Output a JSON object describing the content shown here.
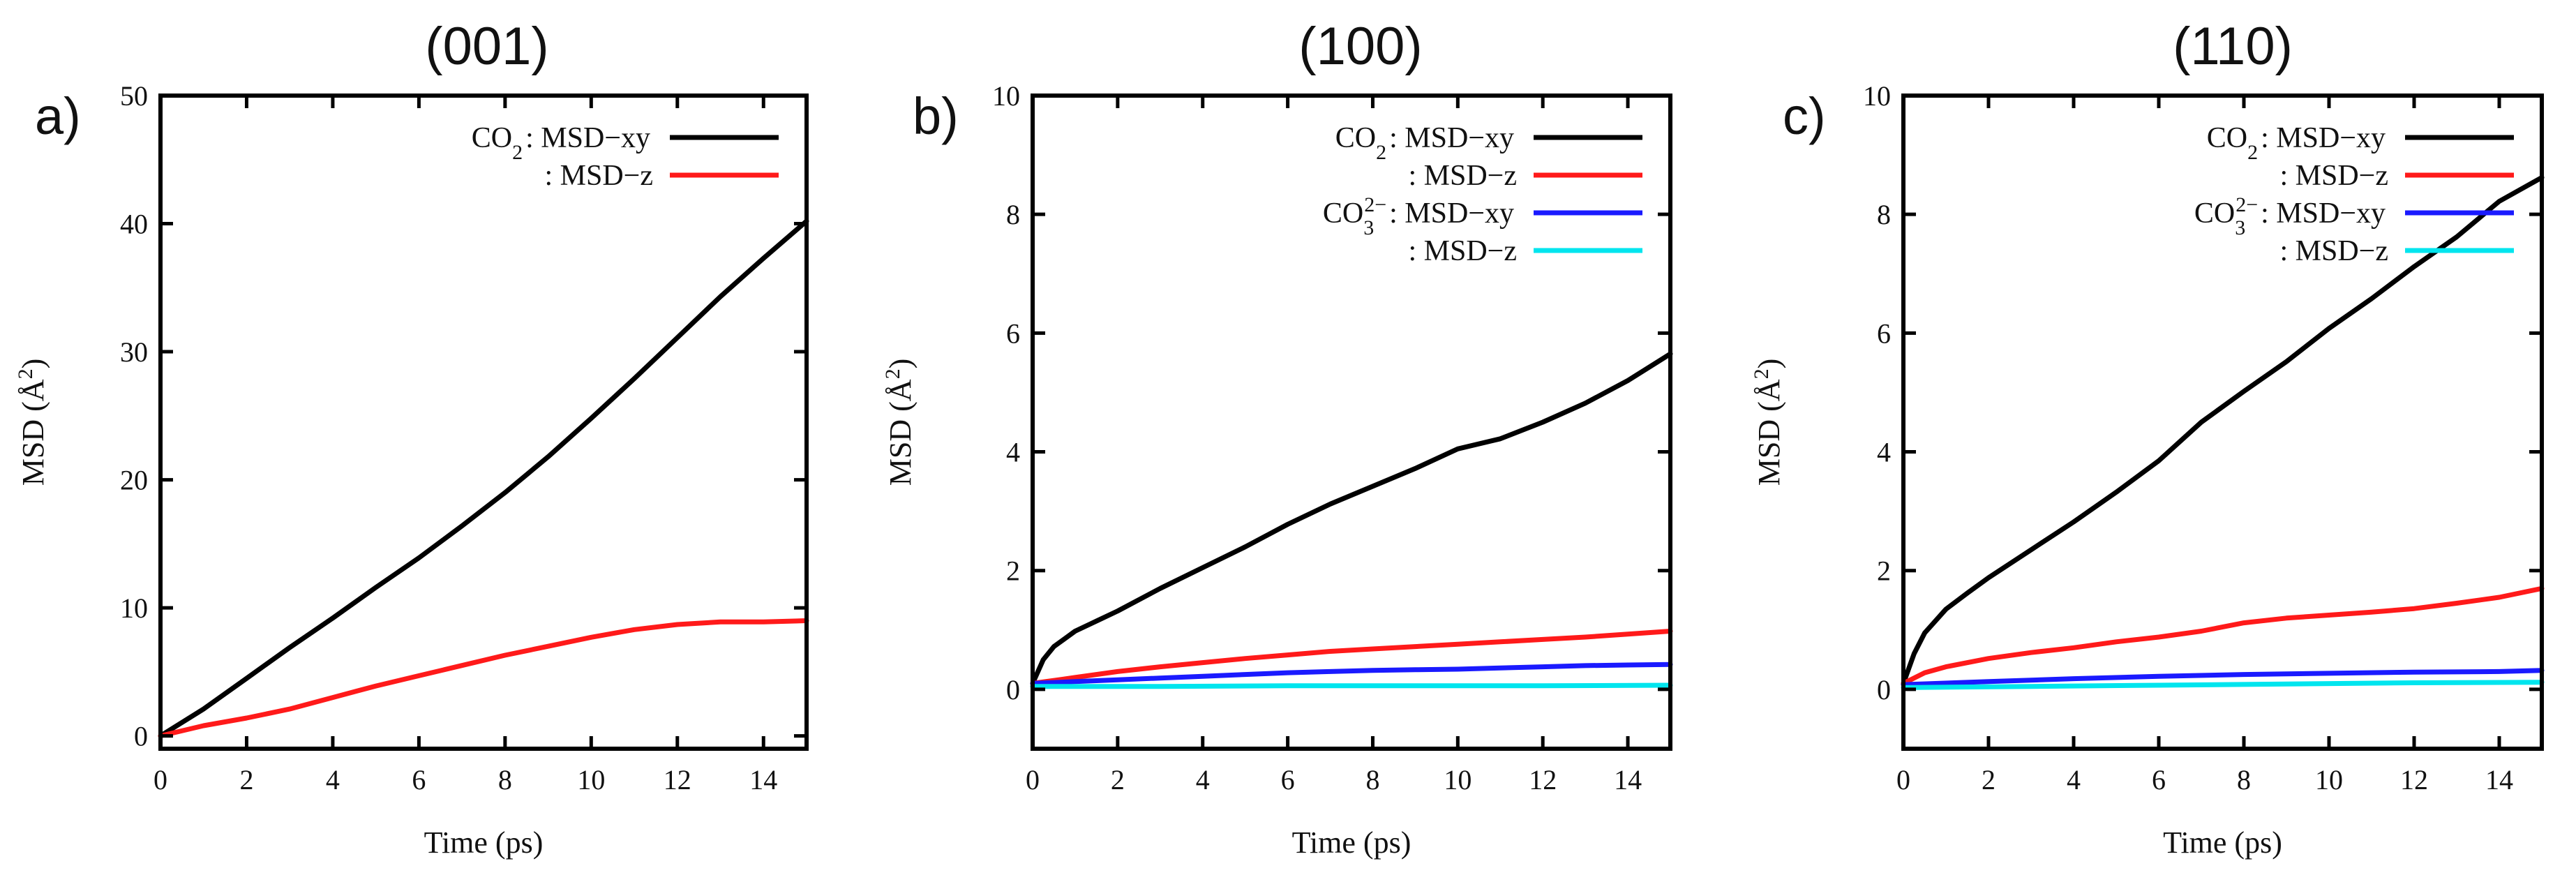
{
  "chart_data": [
    {
      "type": "line",
      "panel_label": "a)",
      "title": "(001)",
      "xlabel": "Time (ps)",
      "ylabel_prefix": "MSD (",
      "ylabel_unit": "Å",
      "ylabel_sup": "2",
      "ylabel_suffix": ")",
      "xlim": [
        0,
        15
      ],
      "ylim": [
        -1,
        50
      ],
      "xticks": [
        0,
        2,
        4,
        6,
        8,
        10,
        12,
        14
      ],
      "yticks": [
        0,
        10,
        20,
        30,
        40,
        50
      ],
      "legend_position": "top-center",
      "series": [
        {
          "name": "CO2 : MSD-xy",
          "species": "CO",
          "species_sub": "2",
          "species_sup": "",
          "label": ": MSD−xy",
          "color": "#000000",
          "x": [
            0,
            1,
            2,
            3,
            4,
            5,
            6,
            7,
            8,
            9,
            10,
            11,
            12,
            13,
            14,
            15
          ],
          "y": [
            0,
            2.1,
            4.5,
            6.9,
            9.2,
            11.6,
            13.9,
            16.4,
            19.0,
            21.8,
            24.8,
            27.9,
            31.1,
            34.3,
            37.3,
            40.2
          ]
        },
        {
          "name": "CO2 : MSD-z",
          "species": "",
          "species_sub": "",
          "species_sup": "",
          "label": ": MSD−z",
          "color": "#ff1a1a",
          "x": [
            0,
            1,
            2,
            3,
            4,
            5,
            6,
            7,
            8,
            9,
            10,
            11,
            12,
            13,
            14,
            15
          ],
          "y": [
            0,
            0.8,
            1.4,
            2.1,
            3.0,
            3.9,
            4.7,
            5.5,
            6.3,
            7.0,
            7.7,
            8.3,
            8.7,
            8.9,
            8.9,
            9.0
          ]
        }
      ]
    },
    {
      "type": "line",
      "panel_label": "b)",
      "title": "(100)",
      "xlabel": "Time (ps)",
      "ylabel_prefix": "MSD (",
      "ylabel_unit": "Å",
      "ylabel_sup": "2",
      "ylabel_suffix": ")",
      "xlim": [
        0,
        15
      ],
      "ylim": [
        -1,
        10
      ],
      "xticks": [
        0,
        2,
        4,
        6,
        8,
        10,
        12,
        14
      ],
      "yticks": [
        0,
        2,
        4,
        6,
        8,
        10
      ],
      "legend_position": "top-right",
      "series": [
        {
          "name": "CO2 : MSD-xy",
          "species": "CO",
          "species_sub": "2",
          "species_sup": "",
          "label": ": MSD−xy",
          "color": "#000000",
          "x": [
            0,
            0.25,
            0.5,
            1,
            1.5,
            2,
            3,
            4,
            5,
            6,
            7,
            8,
            9,
            10,
            11,
            12,
            13,
            14,
            15
          ],
          "y": [
            0.1,
            0.5,
            0.72,
            0.98,
            1.15,
            1.32,
            1.7,
            2.05,
            2.4,
            2.78,
            3.12,
            3.42,
            3.72,
            4.05,
            4.22,
            4.5,
            4.82,
            5.2,
            5.65
          ]
        },
        {
          "name": "CO2 : MSD-z",
          "species": "",
          "species_sub": "",
          "species_sup": "",
          "label": ": MSD−z",
          "color": "#ff1a1a",
          "x": [
            0,
            1,
            2,
            3,
            4,
            5,
            6,
            7,
            8,
            9,
            10,
            11,
            12,
            13,
            14,
            15
          ],
          "y": [
            0.1,
            0.2,
            0.3,
            0.38,
            0.45,
            0.52,
            0.58,
            0.64,
            0.68,
            0.72,
            0.76,
            0.8,
            0.84,
            0.88,
            0.93,
            0.98
          ]
        },
        {
          "name": "CO3 2- : MSD-xy",
          "species": "CO",
          "species_sub": "3",
          "species_sup": "2−",
          "label": ": MSD−xy",
          "color": "#1a1aff",
          "x": [
            0,
            1,
            2,
            3,
            4,
            5,
            6,
            7,
            8,
            9,
            10,
            11,
            12,
            13,
            14,
            15
          ],
          "y": [
            0.1,
            0.13,
            0.16,
            0.19,
            0.22,
            0.25,
            0.28,
            0.3,
            0.32,
            0.33,
            0.34,
            0.36,
            0.38,
            0.4,
            0.41,
            0.42
          ]
        },
        {
          "name": "CO3 2- : MSD-z",
          "species": "",
          "species_sub": "",
          "species_sup": "",
          "label": ": MSD−z",
          "color": "#00e5ee",
          "x": [
            0,
            3,
            6,
            9,
            12,
            15
          ],
          "y": [
            0.05,
            0.05,
            0.06,
            0.06,
            0.06,
            0.07
          ]
        }
      ]
    },
    {
      "type": "line",
      "panel_label": "c)",
      "title": "(110)",
      "xlabel": "Time (ps)",
      "ylabel_prefix": "MSD (",
      "ylabel_unit": "Å",
      "ylabel_sup": "2",
      "ylabel_suffix": ")",
      "xlim": [
        0,
        15
      ],
      "ylim": [
        -1,
        10
      ],
      "xticks": [
        0,
        2,
        4,
        6,
        8,
        10,
        12,
        14
      ],
      "yticks": [
        0,
        2,
        4,
        6,
        8,
        10
      ],
      "legend_position": "top-right",
      "series": [
        {
          "name": "CO2 : MSD-xy",
          "species": "CO",
          "species_sub": "2",
          "species_sup": "",
          "label": ": MSD−xy",
          "color": "#000000",
          "x": [
            0,
            0.25,
            0.5,
            1,
            1.5,
            2,
            3,
            4,
            5,
            6,
            7,
            8,
            9,
            10,
            11,
            12,
            13,
            14,
            15
          ],
          "y": [
            0.1,
            0.6,
            0.95,
            1.35,
            1.62,
            1.88,
            2.35,
            2.82,
            3.32,
            3.85,
            4.5,
            5.02,
            5.52,
            6.08,
            6.58,
            7.12,
            7.62,
            8.22,
            8.62
          ]
        },
        {
          "name": "CO2 : MSD-z",
          "species": "",
          "species_sub": "",
          "species_sup": "",
          "label": ": MSD−z",
          "color": "#ff1a1a",
          "x": [
            0,
            0.5,
            1,
            2,
            3,
            4,
            5,
            6,
            7,
            8,
            9,
            10,
            11,
            12,
            13,
            14,
            15
          ],
          "y": [
            0.1,
            0.28,
            0.38,
            0.52,
            0.62,
            0.7,
            0.8,
            0.88,
            0.98,
            1.12,
            1.2,
            1.25,
            1.3,
            1.36,
            1.45,
            1.55,
            1.7
          ]
        },
        {
          "name": "CO3 2- : MSD-xy",
          "species": "CO",
          "species_sub": "3",
          "species_sup": "2−",
          "label": ": MSD−xy",
          "color": "#1a1aff",
          "x": [
            0,
            2,
            4,
            6,
            8,
            10,
            12,
            14,
            15
          ],
          "y": [
            0.08,
            0.13,
            0.18,
            0.22,
            0.25,
            0.27,
            0.29,
            0.3,
            0.32
          ]
        },
        {
          "name": "CO3 2- : MSD-z",
          "species": "",
          "species_sub": "",
          "species_sup": "",
          "label": ": MSD−z",
          "color": "#00e5ee",
          "x": [
            0,
            3,
            6,
            9,
            12,
            15
          ],
          "y": [
            0.03,
            0.05,
            0.07,
            0.09,
            0.11,
            0.12
          ]
        }
      ]
    }
  ]
}
